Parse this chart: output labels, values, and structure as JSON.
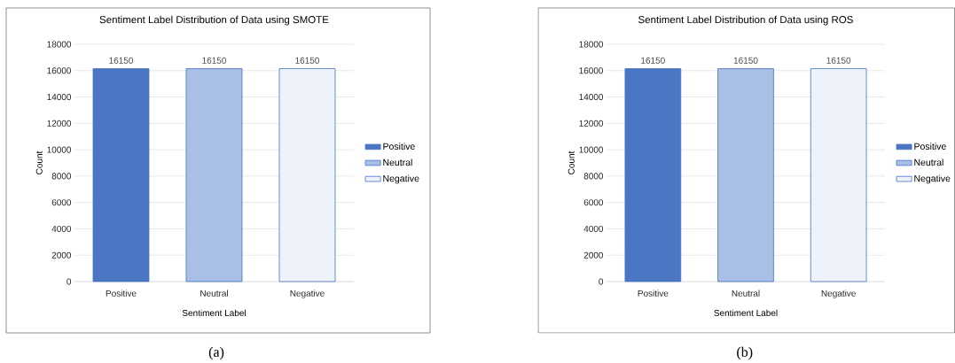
{
  "chart_data": [
    {
      "type": "bar",
      "title": "Sentiment Label Distribution of Data using SMOTE",
      "xlabel": "Sentiment Label",
      "ylabel": "Count",
      "categories": [
        "Positive",
        "Neutral",
        "Negative"
      ],
      "series": [
        {
          "name": "Positive",
          "color": "#4a76c4",
          "values": [
            16150,
            null,
            null
          ]
        },
        {
          "name": "Neutral",
          "color": "#a9bfe6",
          "values": [
            null,
            16150,
            null
          ]
        },
        {
          "name": "Negative",
          "color": "#eef3fb",
          "values": [
            null,
            null,
            16150
          ]
        }
      ],
      "ylim": [
        0,
        18000
      ],
      "yticks": [
        0,
        2000,
        4000,
        6000,
        8000,
        10000,
        12000,
        14000,
        16000,
        18000
      ],
      "grid": "y",
      "legend": "right",
      "data_labels": true,
      "annotations": [
        "(a)"
      ]
    },
    {
      "type": "bar",
      "title": "Sentiment Label Distribution of Data using ROS",
      "xlabel": "Sentiment Label",
      "ylabel": "Count",
      "categories": [
        "Positive",
        "Neutral",
        "Negative"
      ],
      "series": [
        {
          "name": "Positive",
          "color": "#4a76c4",
          "values": [
            16150,
            null,
            null
          ]
        },
        {
          "name": "Neutral",
          "color": "#a9bfe6",
          "values": [
            null,
            16150,
            null
          ]
        },
        {
          "name": "Negative",
          "color": "#eef3fb",
          "values": [
            null,
            null,
            16150
          ]
        }
      ],
      "ylim": [
        0,
        18000
      ],
      "yticks": [
        0,
        2000,
        4000,
        6000,
        8000,
        10000,
        12000,
        14000,
        16000,
        18000
      ],
      "grid": "y",
      "legend": "right",
      "data_labels": true,
      "annotations": [
        "(b)"
      ]
    }
  ]
}
